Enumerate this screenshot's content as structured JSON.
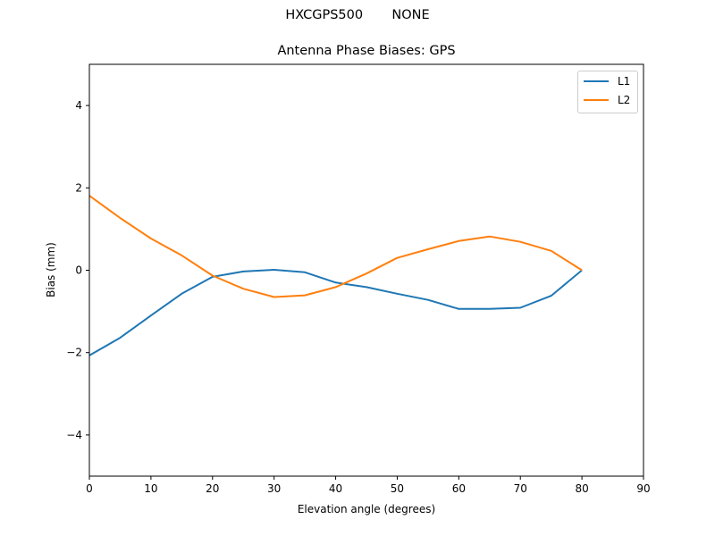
{
  "figure": {
    "suptitle": "HXCGPS500       NONE",
    "title": "Antenna Phase Biases: GPS"
  },
  "colors": {
    "L1": "#1f77b4",
    "L2": "#ff7f0e"
  },
  "chart_data": {
    "type": "line",
    "title": "Antenna Phase Biases: GPS",
    "suptitle": "HXCGPS500       NONE",
    "xlabel": "Elevation angle (degrees)",
    "ylabel": "Bias (mm)",
    "xlim": [
      0,
      90
    ],
    "ylim": [
      -5,
      5
    ],
    "xticks": [
      0,
      10,
      20,
      30,
      40,
      50,
      60,
      70,
      80,
      90
    ],
    "yticks": [
      -4,
      -2,
      0,
      2,
      4
    ],
    "ytick_labels": [
      "−4",
      "−2",
      "0",
      "2",
      "4"
    ],
    "grid": false,
    "legend_position": "upper right",
    "x": [
      0,
      5,
      10,
      15,
      20,
      25,
      30,
      35,
      40,
      45,
      50,
      55,
      60,
      65,
      70,
      75,
      80
    ],
    "series": [
      {
        "name": "L1",
        "color": "#1f77b4",
        "values": [
          -2.07,
          -1.64,
          -1.1,
          -0.57,
          -0.16,
          -0.03,
          0.01,
          -0.05,
          -0.3,
          -0.41,
          -0.57,
          -0.72,
          -0.94,
          -0.94,
          -0.91,
          -0.62,
          0.0
        ]
      },
      {
        "name": "L2",
        "color": "#ff7f0e",
        "values": [
          1.81,
          1.27,
          0.77,
          0.36,
          -0.13,
          -0.45,
          -0.65,
          -0.61,
          -0.41,
          -0.08,
          0.3,
          0.51,
          0.71,
          0.82,
          0.69,
          0.47,
          0.0
        ]
      }
    ]
  },
  "legend": {
    "items": [
      {
        "label": "L1"
      },
      {
        "label": "L2"
      }
    ]
  }
}
